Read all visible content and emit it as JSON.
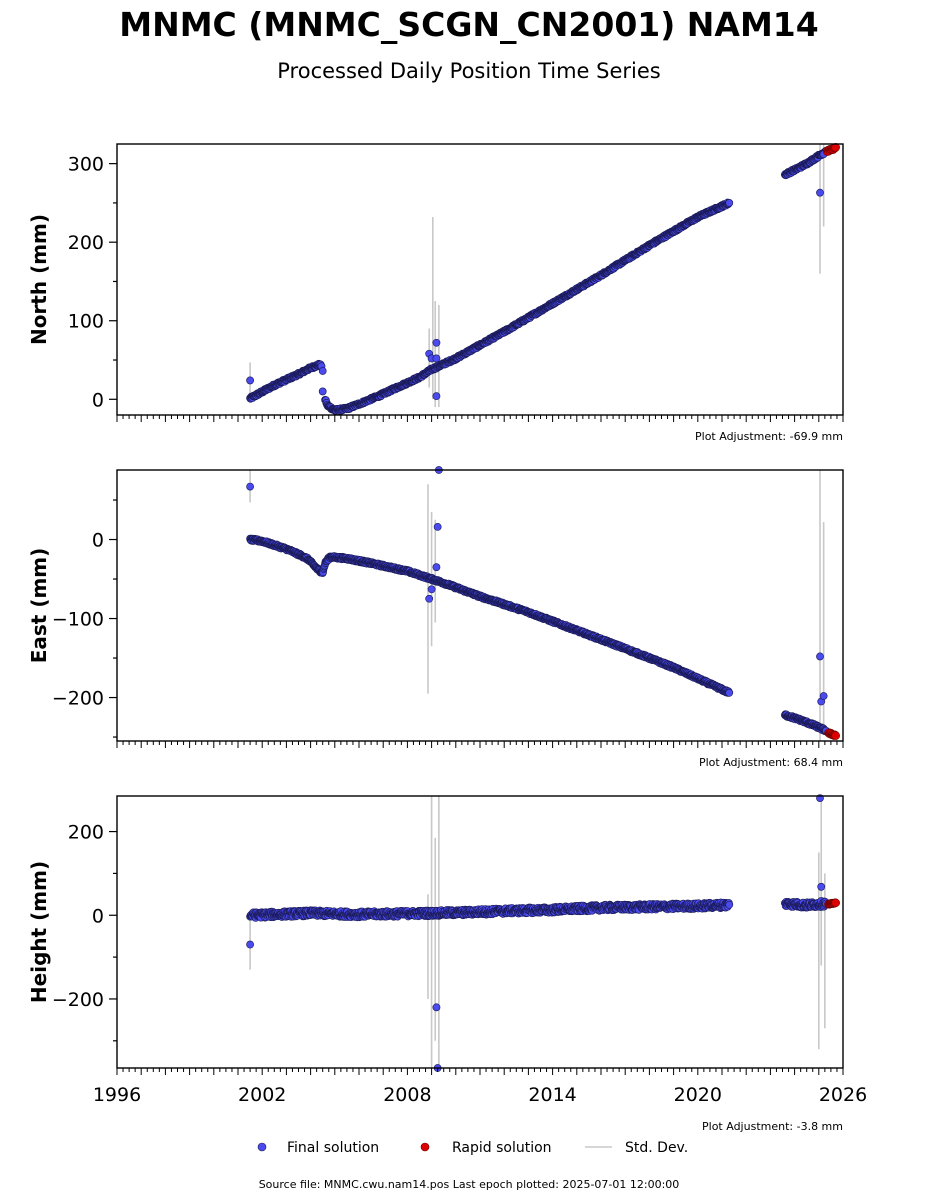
{
  "title": "MNMC (MNMC_SCGN_CN2001) NAM14",
  "subtitle": "Processed Daily Position Time Series",
  "footer": "Source file: MNMC.cwu.nam14.pos  Last epoch plotted: 2025-07-01 12:00:00",
  "legend": {
    "final": "Final solution",
    "rapid": "Rapid solution",
    "std": "Std. Dev."
  },
  "colors": {
    "final": "#4a4aee",
    "final_edge": "#1a1a55",
    "rapid": "#dd0000",
    "std": "#c8c8c8"
  },
  "chart_data": [
    {
      "type": "scatter",
      "ylabel": "North (mm)",
      "adjustment": "Plot Adjustment: -69.9 mm",
      "xlim": [
        1996,
        2026
      ],
      "ylim": [
        -20,
        325
      ],
      "yticks": [
        0,
        100,
        200,
        300
      ],
      "yticklabels": [
        "0",
        "100",
        "200",
        "300"
      ],
      "segments": [
        {
          "x": [
            2001.5,
            2002.5,
            2003.5,
            2004.0,
            2004.35,
            2004.45
          ],
          "y": [
            1,
            18,
            32,
            40,
            44,
            42
          ]
        },
        {
          "x": [
            2004.6,
            2004.7,
            2005.0,
            2005.5,
            2006.0,
            2006.8,
            2007.5,
            2008.5,
            2009.0,
            2010.0,
            2012.0,
            2014.0,
            2016.0,
            2018.0,
            2020.0,
            2021.3
          ],
          "y": [
            0,
            -8,
            -14,
            -12,
            -6,
            4,
            14,
            28,
            38,
            52,
            86,
            122,
            158,
            196,
            232,
            250
          ]
        },
        {
          "x": [
            2023.6,
            2024.0,
            2024.5,
            2025.0,
            2025.3
          ],
          "y": [
            286,
            292,
            300,
            310,
            316
          ]
        }
      ],
      "outliers": [
        {
          "x": 2001.5,
          "y": 24
        },
        {
          "x": 2004.5,
          "y": 36
        },
        {
          "x": 2004.5,
          "y": 10
        },
        {
          "x": 2008.9,
          "y": 58
        },
        {
          "x": 2009.0,
          "y": 52
        },
        {
          "x": 2009.2,
          "y": 72
        },
        {
          "x": 2009.2,
          "y": 52
        },
        {
          "x": 2009.2,
          "y": 4
        },
        {
          "x": 2025.05,
          "y": 263
        },
        {
          "x": 2025.2,
          "y": 312
        }
      ],
      "std_bars": [
        {
          "x": 2001.5,
          "lo": 5,
          "hi": 47
        },
        {
          "x": 2008.9,
          "lo": 15,
          "hi": 90
        },
        {
          "x": 2009.05,
          "lo": 0,
          "hi": 232
        },
        {
          "x": 2009.15,
          "lo": -10,
          "hi": 125
        },
        {
          "x": 2009.3,
          "lo": -10,
          "hi": 120
        },
        {
          "x": 2025.05,
          "lo": 160,
          "hi": 325
        },
        {
          "x": 2025.2,
          "lo": 220,
          "hi": 325
        }
      ],
      "rapid": {
        "x": [
          2025.35,
          2025.7
        ],
        "y": [
          316,
          320
        ]
      }
    },
    {
      "type": "scatter",
      "ylabel": "East (mm)",
      "adjustment": "Plot Adjustment: 68.4 mm",
      "xlim": [
        1996,
        2026
      ],
      "ylim": [
        -255,
        88
      ],
      "yticks": [
        -200,
        -100,
        0
      ],
      "yticklabels": [
        "−200",
        "−100",
        "0"
      ],
      "segments": [
        {
          "x": [
            2001.5,
            2002.0,
            2003.0,
            2003.6,
            2003.9,
            2004.3,
            2004.5,
            2004.6,
            2004.8,
            2005.5,
            2006.5,
            2008.0,
            2009.5,
            2011.0,
            2013.0,
            2015.0,
            2017.0,
            2019.0,
            2021.3
          ],
          "y": [
            0,
            -2,
            -12,
            -20,
            -25,
            -38,
            -42,
            -30,
            -22,
            -24,
            -30,
            -40,
            -55,
            -72,
            -92,
            -115,
            -138,
            -162,
            -194
          ]
        },
        {
          "x": [
            2023.6,
            2024.2,
            2024.8,
            2025.3
          ],
          "y": [
            -222,
            -228,
            -235,
            -242
          ]
        }
      ],
      "outliers": [
        {
          "x": 2001.5,
          "y": 67
        },
        {
          "x": 2008.9,
          "y": -75
        },
        {
          "x": 2009.0,
          "y": -63
        },
        {
          "x": 2009.2,
          "y": -35
        },
        {
          "x": 2009.25,
          "y": 16
        },
        {
          "x": 2009.3,
          "y": 88
        },
        {
          "x": 2025.05,
          "y": -148
        },
        {
          "x": 2025.1,
          "y": -205
        },
        {
          "x": 2025.2,
          "y": -198
        }
      ],
      "std_bars": [
        {
          "x": 2001.5,
          "lo": 47,
          "hi": 88
        },
        {
          "x": 2008.85,
          "lo": -195,
          "hi": 70
        },
        {
          "x": 2009.0,
          "lo": -135,
          "hi": 35
        },
        {
          "x": 2009.15,
          "lo": -105,
          "hi": 25
        },
        {
          "x": 2025.05,
          "lo": -255,
          "hi": 88
        },
        {
          "x": 2025.2,
          "lo": -240,
          "hi": 22
        }
      ],
      "rapid": {
        "x": [
          2025.4,
          2025.7
        ],
        "y": [
          -245,
          -248
        ]
      }
    },
    {
      "type": "scatter",
      "ylabel": "Height (mm)",
      "adjustment": "Plot Adjustment: -3.8 mm",
      "xlim": [
        1996,
        2026
      ],
      "ylim": [
        -365,
        285
      ],
      "yticks": [
        -200,
        0,
        200
      ],
      "yticklabels": [
        "−200",
        "0",
        "200"
      ],
      "xticks": [
        1996,
        2002,
        2008,
        2014,
        2020,
        2026
      ],
      "xticklabels": [
        "1996",
        "2002",
        "2008",
        "2014",
        "2020",
        "2026"
      ],
      "segments": [
        {
          "x": [
            2001.5,
            2004.0,
            2006.0,
            2008.0,
            2010.0,
            2012.0,
            2014.0,
            2016.0,
            2018.0,
            2020.0,
            2021.3
          ],
          "y": [
            0,
            5,
            2,
            4,
            6,
            10,
            13,
            18,
            20,
            22,
            25
          ]
        },
        {
          "x": [
            2023.6,
            2024.5,
            2025.3
          ],
          "y": [
            28,
            24,
            28
          ]
        }
      ],
      "outliers": [
        {
          "x": 2001.5,
          "y": -70
        },
        {
          "x": 2009.2,
          "y": -220
        },
        {
          "x": 2009.25,
          "y": -365
        },
        {
          "x": 2025.05,
          "y": 280
        },
        {
          "x": 2025.1,
          "y": 68
        }
      ],
      "std_bars": [
        {
          "x": 2001.5,
          "lo": -130,
          "hi": -10
        },
        {
          "x": 2008.85,
          "lo": -200,
          "hi": 50
        },
        {
          "x": 2009.0,
          "lo": -365,
          "hi": 285
        },
        {
          "x": 2009.15,
          "lo": -300,
          "hi": 185
        },
        {
          "x": 2009.3,
          "lo": -365,
          "hi": 285
        },
        {
          "x": 2025.0,
          "lo": -320,
          "hi": 150
        },
        {
          "x": 2025.1,
          "lo": -120,
          "hi": 285
        },
        {
          "x": 2025.25,
          "lo": -270,
          "hi": 100
        }
      ],
      "rapid": {
        "x": [
          2025.4,
          2025.7
        ],
        "y": [
          26,
          30
        ]
      }
    }
  ]
}
